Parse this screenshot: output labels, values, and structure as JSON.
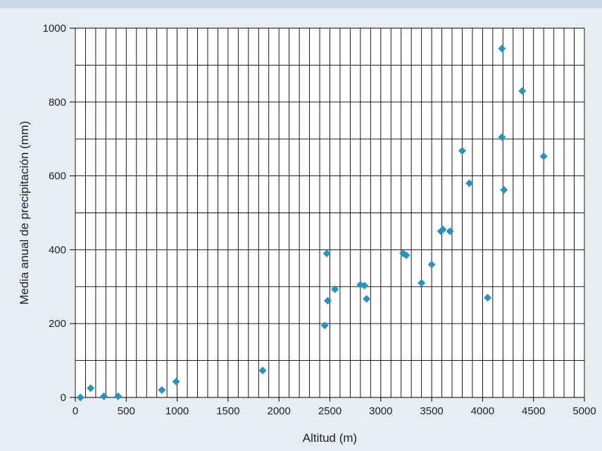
{
  "chart_data": {
    "type": "scatter",
    "title": "",
    "xlabel": "Altitud (m)",
    "ylabel": "Media anual de precipitación  (mm)",
    "xlim": [
      0,
      5000
    ],
    "ylim": [
      0,
      1000
    ],
    "x_ticks": [
      0,
      500,
      1000,
      1500,
      2000,
      2500,
      3000,
      3500,
      4000,
      4500,
      5000
    ],
    "y_ticks": [
      0,
      200,
      400,
      600,
      800,
      1000
    ],
    "grid": true,
    "marker": "diamond",
    "marker_color": "#2a93bd",
    "points": [
      {
        "x": 50,
        "y": 0
      },
      {
        "x": 150,
        "y": 25
      },
      {
        "x": 280,
        "y": 3
      },
      {
        "x": 420,
        "y": 3
      },
      {
        "x": 850,
        "y": 20
      },
      {
        "x": 990,
        "y": 43
      },
      {
        "x": 1840,
        "y": 73
      },
      {
        "x": 2450,
        "y": 195
      },
      {
        "x": 2470,
        "y": 390
      },
      {
        "x": 2480,
        "y": 262
      },
      {
        "x": 2550,
        "y": 293
      },
      {
        "x": 2800,
        "y": 305
      },
      {
        "x": 2840,
        "y": 303
      },
      {
        "x": 2860,
        "y": 267
      },
      {
        "x": 3220,
        "y": 390
      },
      {
        "x": 3250,
        "y": 385
      },
      {
        "x": 3400,
        "y": 310
      },
      {
        "x": 3500,
        "y": 360
      },
      {
        "x": 3590,
        "y": 450
      },
      {
        "x": 3610,
        "y": 455
      },
      {
        "x": 3680,
        "y": 450
      },
      {
        "x": 3800,
        "y": 668
      },
      {
        "x": 3870,
        "y": 580
      },
      {
        "x": 4050,
        "y": 270
      },
      {
        "x": 4190,
        "y": 945
      },
      {
        "x": 4190,
        "y": 705
      },
      {
        "x": 4210,
        "y": 562
      },
      {
        "x": 4390,
        "y": 830
      },
      {
        "x": 4600,
        "y": 653
      }
    ]
  }
}
